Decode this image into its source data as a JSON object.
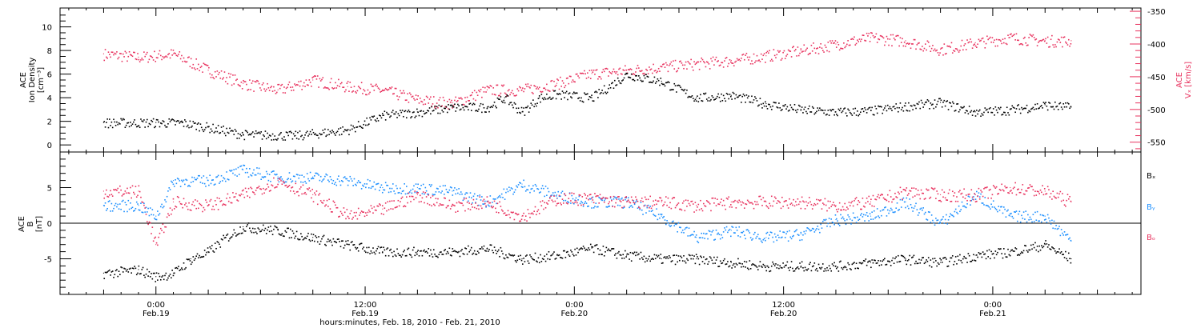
{
  "chart_data": [
    {
      "type": "scatter",
      "panel": "top",
      "ylabel_left": [
        "ACE",
        "Ion Density",
        "[cm⁻³]"
      ],
      "ylabel_right": [
        "ACE",
        "Vₓ [km/s]"
      ],
      "ylim_left": [
        -0.6,
        11.6
      ],
      "yticks_left": [
        0,
        2,
        4,
        6,
        8,
        10
      ],
      "ylim_right": [
        -565,
        -345
      ],
      "yticks_right": [
        -550,
        -500,
        -450,
        -400,
        -350
      ],
      "series": [
        {
          "name": "Ion Density",
          "axis": "left",
          "color": "#000000",
          "x": [
            -3,
            0,
            1.5,
            3,
            5,
            8,
            11,
            13,
            15,
            17,
            19,
            20,
            21,
            22,
            23,
            25,
            27,
            29,
            31,
            33,
            35,
            37,
            39,
            41,
            43,
            45,
            47,
            49,
            51,
            52.5
          ],
          "y": [
            1.9,
            1.9,
            1.9,
            1.5,
            0.9,
            0.8,
            1.3,
            2.5,
            2.8,
            3.2,
            3.2,
            4.0,
            2.8,
            4.0,
            4.3,
            4.0,
            6.0,
            5.4,
            4.0,
            4.2,
            3.5,
            3.0,
            2.8,
            2.9,
            3.3,
            3.6,
            2.8,
            3.0,
            3.4,
            3.2
          ]
        },
        {
          "name": "Vx",
          "axis": "right",
          "color": "#e8335f",
          "x": [
            -3,
            -1,
            1,
            3,
            5,
            7,
            9,
            11,
            13,
            15,
            17,
            19,
            21,
            23,
            25,
            27,
            29,
            31,
            33,
            35,
            37,
            39,
            41,
            43,
            45,
            47,
            49,
            51,
            52.5
          ],
          "y": [
            -415,
            -420,
            -415,
            -440,
            -460,
            -470,
            -455,
            -465,
            -470,
            -485,
            -490,
            -470,
            -470,
            -460,
            -445,
            -440,
            -435,
            -430,
            -425,
            -418,
            -410,
            -400,
            -390,
            -395,
            -408,
            -398,
            -390,
            -395,
            -395
          ]
        }
      ]
    },
    {
      "type": "scatter",
      "panel": "bottom",
      "ylabel": [
        "ACE",
        "B",
        "[nT]"
      ],
      "ylim": [
        -10,
        10
      ],
      "yticks": [
        -5,
        0,
        5
      ],
      "zero_line": true,
      "legend": [
        "Bₓ",
        "Bᵧ",
        "Bₒ"
      ],
      "series": [
        {
          "name": "Bx",
          "color": "#000000",
          "x": [
            -3,
            -1,
            0,
            1,
            2,
            3,
            4,
            5,
            7,
            9,
            11,
            13,
            15,
            17,
            19,
            21,
            23,
            25,
            27,
            29,
            31,
            33,
            35,
            37,
            39,
            41,
            43,
            45,
            47,
            49,
            51,
            52.5
          ],
          "y": [
            -7,
            -6.5,
            -7.5,
            -7,
            -5,
            -4,
            -2,
            -0.5,
            -1,
            -2,
            -3,
            -4,
            -4,
            -4,
            -3.5,
            -5,
            -4.5,
            -3.5,
            -4.5,
            -5,
            -5,
            -5.5,
            -6,
            -6,
            -6,
            -5.5,
            -5,
            -5.5,
            -4.5,
            -4,
            -3,
            -5
          ]
        },
        {
          "name": "By",
          "color": "#1e90ff",
          "x": [
            -3,
            -1,
            0,
            1,
            3,
            5,
            7,
            9,
            11,
            13,
            15,
            17,
            19,
            21,
            23,
            25,
            27,
            29,
            31,
            33,
            35,
            37,
            39,
            41,
            43,
            45,
            47,
            49,
            51,
            52.5
          ],
          "y": [
            2.5,
            2.5,
            1,
            6,
            6,
            7.5,
            6.5,
            6.5,
            6,
            5,
            5,
            4.5,
            3,
            5.5,
            4,
            3,
            3,
            1,
            -2,
            -1,
            -2,
            -1.5,
            0.5,
            1,
            3,
            0,
            4,
            1,
            1,
            -2.5
          ]
        },
        {
          "name": "Bz",
          "color": "#e8335f",
          "x": [
            -3,
            -1,
            0,
            1,
            3,
            5,
            7,
            9,
            11,
            13,
            15,
            17,
            19,
            21,
            23,
            25,
            27,
            29,
            31,
            33,
            35,
            37,
            39,
            41,
            43,
            45,
            47,
            49,
            51,
            52.5
          ],
          "y": [
            4.5,
            4.5,
            -3,
            3,
            2.5,
            4,
            6,
            4,
            1,
            2,
            4,
            2.5,
            3,
            1,
            3.5,
            3.5,
            3,
            3,
            2.5,
            3,
            3,
            3,
            2.5,
            3,
            4.5,
            4,
            4,
            5,
            4.5,
            3
          ]
        }
      ]
    }
  ],
  "x_axis": {
    "xlim": [
      -5.5,
      56.5
    ],
    "ticks": [
      {
        "x": 0,
        "time": "0:00",
        "date": "Feb.19"
      },
      {
        "x": 12,
        "time": "12:00",
        "date": "Feb.19"
      },
      {
        "x": 24,
        "time": "0:00",
        "date": "Feb.20"
      },
      {
        "x": 36,
        "time": "12:00",
        "date": "Feb.20"
      },
      {
        "x": 48,
        "time": "0:00",
        "date": "Feb.21"
      }
    ],
    "title": "hours:minutes, Feb. 18, 2010 - Feb. 21, 2010"
  },
  "colors": {
    "density": "#000000",
    "vx": "#e8335f",
    "bx": "#000000",
    "by": "#1e90ff",
    "bz": "#e8335f"
  }
}
